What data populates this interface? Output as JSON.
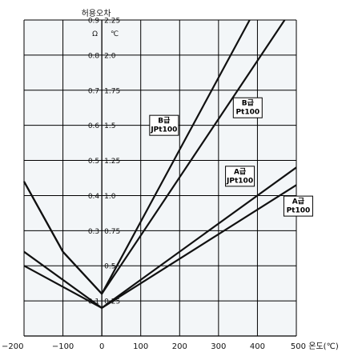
{
  "chart_data": {
    "type": "line",
    "xlabel": "온도(℃)",
    "ylabel_title": "허용오차",
    "ylabel_units": [
      "Ω",
      "℃"
    ],
    "xlim": [
      -200,
      500
    ],
    "ylim": [
      0,
      0.9
    ],
    "x_ticks": [
      -200,
      -100,
      0,
      100,
      200,
      300,
      400,
      500
    ],
    "x_tick_labels": [
      "−200",
      "−100",
      "0",
      "100",
      "200",
      "300",
      "400",
      "500"
    ],
    "y_ticks": [
      {
        "ohm": "0.1",
        "deg": "0.25",
        "value": 0.1
      },
      {
        "ohm": "",
        "deg": "0.5",
        "value": 0.2
      },
      {
        "ohm": "0.3",
        "deg": "0.75",
        "value": 0.3
      },
      {
        "ohm": "0.4",
        "deg": "1.0",
        "value": 0.4
      },
      {
        "ohm": "0.5",
        "deg": "1.25",
        "value": 0.5
      },
      {
        "ohm": "0.6",
        "deg": "1.5",
        "value": 0.6
      },
      {
        "ohm": "0.7",
        "deg": "1.75",
        "value": 0.7
      },
      {
        "ohm": "0.8",
        "deg": "2.0",
        "value": 0.8
      },
      {
        "ohm": "0.9",
        "deg": "2.25",
        "value": 0.9
      }
    ],
    "grid": true,
    "series": [
      {
        "name": "B급 JPt100",
        "x": [
          -200,
          -100,
          0,
          380
        ],
        "y": [
          0.44,
          0.24,
          0.12,
          0.9
        ]
      },
      {
        "name": "B급 Pt100",
        "x": [
          -200,
          -100,
          0,
          470
        ],
        "y": [
          0.44,
          0.24,
          0.12,
          0.9
        ]
      },
      {
        "name": "A급 JPt100",
        "x": [
          -200,
          0,
          500
        ],
        "y": [
          0.24,
          0.08,
          0.48
        ]
      },
      {
        "name": "A급 Pt100",
        "x": [
          -200,
          0,
          500
        ],
        "y": [
          0.2,
          0.08,
          0.43
        ]
      }
    ],
    "annotations": [
      {
        "lines": [
          "B급",
          "JPt100"
        ],
        "at": [
          160,
          0.6
        ]
      },
      {
        "lines": [
          "B급",
          "Pt100"
        ],
        "at": [
          375,
          0.65
        ]
      },
      {
        "lines": [
          "A급",
          "JPt100"
        ],
        "at": [
          355,
          0.455
        ]
      },
      {
        "lines": [
          "A급",
          "Pt100"
        ],
        "at": [
          505,
          0.37
        ]
      }
    ]
  }
}
